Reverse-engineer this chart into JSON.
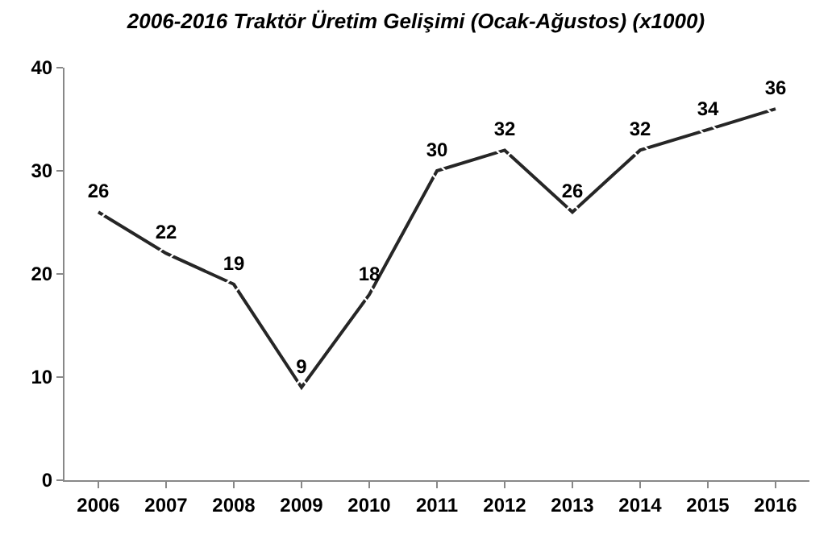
{
  "chart_data": {
    "type": "line",
    "title": "2006-2016 Traktör Üretim Gelişimi (Ocak-Ağustos) (x1000)",
    "categories": [
      "2006",
      "2007",
      "2008",
      "2009",
      "2010",
      "2011",
      "2012",
      "2013",
      "2014",
      "2015",
      "2016"
    ],
    "series": [
      {
        "color": "#262626",
        "values": [
          26,
          22,
          19,
          9,
          18,
          30,
          32,
          26,
          32,
          34,
          36
        ]
      }
    ],
    "ylim": [
      0,
      40
    ],
    "yticks": [
      0,
      10,
      20,
      30,
      40
    ],
    "grid": false,
    "legend": false,
    "marker": "diamond",
    "line_style": "solid",
    "data_labels": true
  }
}
